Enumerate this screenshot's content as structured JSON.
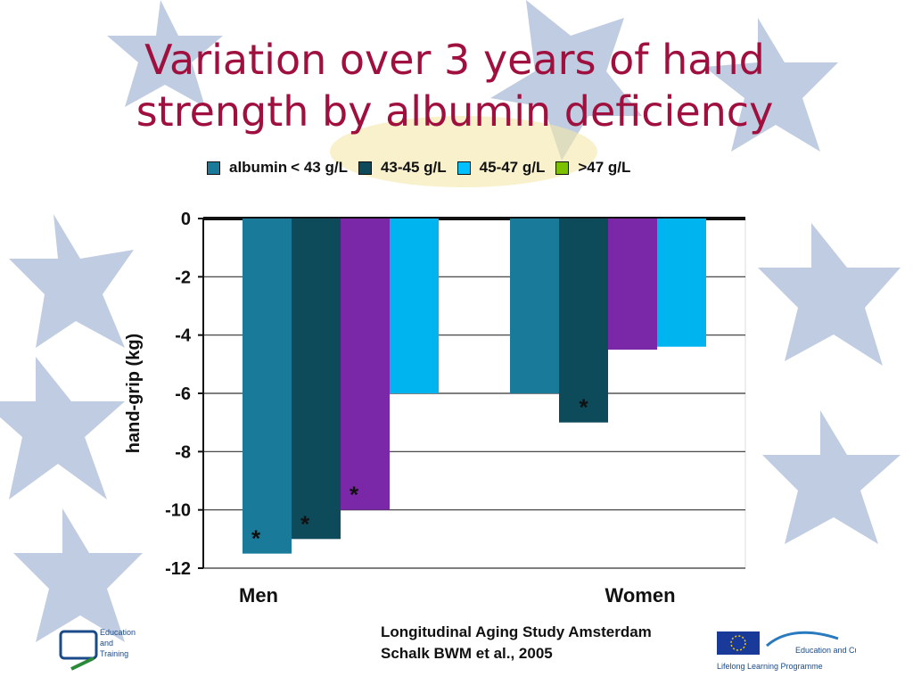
{
  "title": "Variation over 3 years of hand strength by albumin deficiency",
  "legend": {
    "prefix": "albumin",
    "items": [
      {
        "label": "< 43 g/L",
        "color": "#1a7a9a"
      },
      {
        "label": "43-45 g/L",
        "color": "#0d4a5a"
      },
      {
        "label": "45-47 g/L",
        "color": "#00c0ff"
      },
      {
        "label": ">47 g/L",
        "color": "#7cc000"
      }
    ]
  },
  "chart_data": {
    "type": "bar",
    "categories": [
      "Men",
      "Women"
    ],
    "ylabel": "hand-grip (kg)",
    "xlabel": "",
    "ylim": [
      -12,
      0
    ],
    "yticks": [
      0,
      -2,
      -4,
      -6,
      -8,
      -10,
      -12
    ],
    "grid": true,
    "legend_position": "top",
    "series": [
      {
        "color": "#1a7a9a",
        "values": [
          -11.5,
          -6.0
        ]
      },
      {
        "color": "#0d4a5a",
        "values": [
          -11.0,
          -7.0
        ]
      },
      {
        "color": "#7b28a8",
        "values": [
          -10.0,
          -4.5
        ]
      },
      {
        "color": "#00b4ef",
        "values": [
          -6.0,
          -4.4
        ]
      }
    ],
    "annotations": [
      {
        "text": "*",
        "series": 0,
        "category": "Men"
      },
      {
        "text": "*",
        "series": 1,
        "category": "Men"
      },
      {
        "text": "*",
        "series": 2,
        "category": "Men"
      },
      {
        "text": "*",
        "series": 1,
        "category": "Women"
      }
    ]
  },
  "footer": {
    "line1": "Longitudinal Aging Study Amsterdam",
    "line2": "Schalk BWM et al., 2005"
  },
  "logos": {
    "left": [
      "Education",
      "and",
      "Training"
    ],
    "right": [
      "Education and Culture DG",
      "Lifelong Learning Programme"
    ]
  }
}
